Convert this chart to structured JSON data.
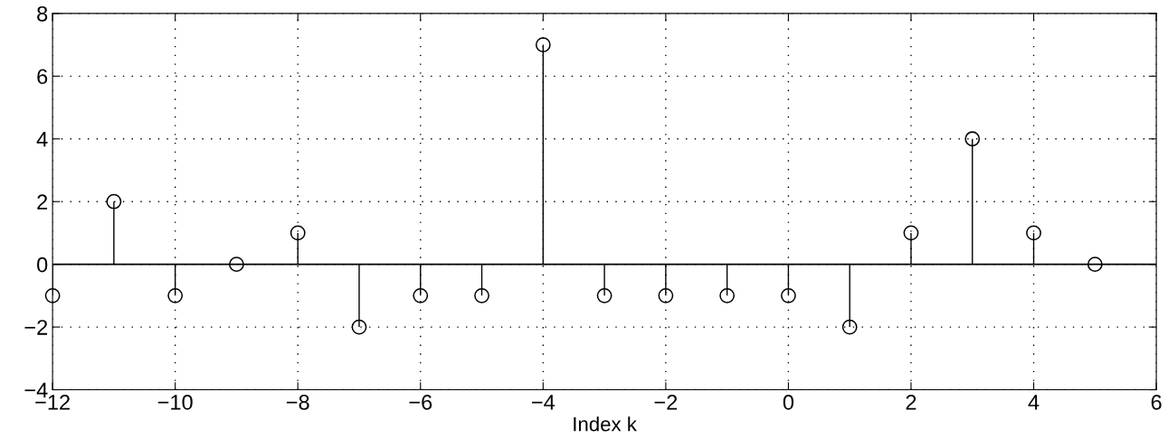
{
  "chart_data": {
    "type": "lollipop",
    "xlabel": "Index k",
    "x": [
      -12,
      -11,
      -10,
      -9,
      -8,
      -7,
      -6,
      -5,
      -4,
      -3,
      -2,
      -1,
      0,
      1,
      2,
      3,
      4,
      5
    ],
    "values": [
      -1,
      2,
      -1,
      0,
      1,
      -2,
      -1,
      -1,
      7,
      -1,
      -1,
      -1,
      -1,
      -2,
      1,
      4,
      1,
      0
    ],
    "color": "#000000",
    "marker": "circle",
    "xlim": [
      -12,
      6
    ],
    "xticks": [
      -12,
      -10,
      -8,
      -6,
      -4,
      -2,
      0,
      2,
      4,
      6
    ],
    "ylim": [
      -4,
      8
    ],
    "yticks": [
      -4,
      -2,
      0,
      2,
      4,
      6,
      8
    ],
    "grid": true
  }
}
